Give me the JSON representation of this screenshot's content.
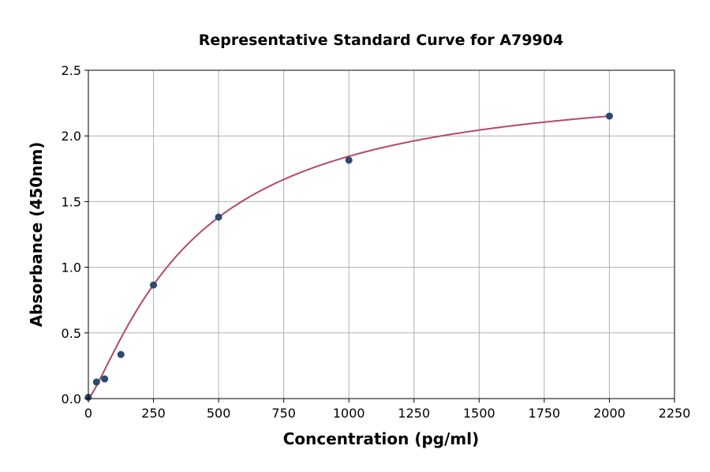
{
  "chart_data": {
    "type": "scatter",
    "title": "Representative Standard Curve for A79904",
    "xlabel": "Concentration (pg/ml)",
    "ylabel": "Absorbance (450nm)",
    "xlim": [
      0,
      2250
    ],
    "ylim": [
      0,
      2.5
    ],
    "xticks": [
      0,
      250,
      500,
      750,
      1000,
      1250,
      1500,
      1750,
      2000,
      2250
    ],
    "yticks": [
      "0.0",
      "0.5",
      "1.0",
      "1.5",
      "2.0",
      "2.5"
    ],
    "grid": true,
    "points": {
      "x": [
        0,
        31.25,
        62.5,
        125,
        250,
        500,
        1000,
        2000
      ],
      "y": [
        0.01,
        0.126,
        0.15,
        0.336,
        0.865,
        1.382,
        1.815,
        2.151
      ]
    },
    "fit_curve": {
      "model": "4PL",
      "bottom": 0,
      "top": 2.45,
      "ec50": 407,
      "hill": 1.24
    },
    "colors": {
      "points": "#2c4a6e",
      "curve": "#b5476b",
      "grid": "#b0b0b0"
    }
  }
}
